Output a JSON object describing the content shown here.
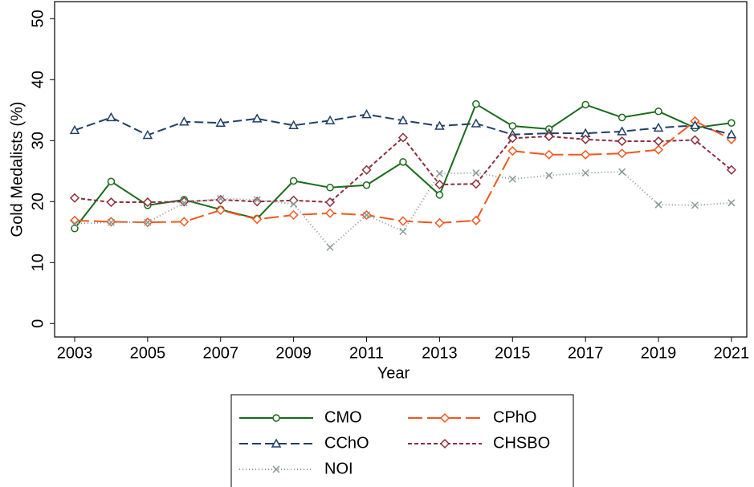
{
  "chart_data": {
    "type": "line",
    "x": [
      2003,
      2004,
      2005,
      2006,
      2007,
      2008,
      2009,
      2010,
      2011,
      2012,
      2013,
      2014,
      2015,
      2016,
      2017,
      2018,
      2019,
      2020,
      2021
    ],
    "xlabel": "Year",
    "ylabel": "Gold Medalists (%)",
    "xlim": [
      2002.45,
      2021.42
    ],
    "ylim": [
      -2.2,
      52.8
    ],
    "xticks": [
      2003,
      2005,
      2007,
      2009,
      2011,
      2013,
      2015,
      2017,
      2019,
      2021
    ],
    "yticks": [
      0,
      10,
      20,
      30,
      40,
      50
    ],
    "series": [
      {
        "name": "CMO",
        "color": "#1a6b1a",
        "marker": "circle",
        "dash": "none",
        "values": [
          15.6,
          23.3,
          19.4,
          20.3,
          18.7,
          17.2,
          23.4,
          22.3,
          22.7,
          26.5,
          21.1,
          36.0,
          32.4,
          31.9,
          35.9,
          33.8,
          34.8,
          32.1,
          32.9
        ]
      },
      {
        "name": "CPhO",
        "color": "#f0571f",
        "marker": "diamond",
        "dash": "18 6",
        "values": [
          16.9,
          16.7,
          16.6,
          16.7,
          18.6,
          17.1,
          17.8,
          18.1,
          17.8,
          16.8,
          16.5,
          16.9,
          28.3,
          27.7,
          27.7,
          27.9,
          28.5,
          33.2,
          30.2
        ]
      },
      {
        "name": "CChO",
        "color": "#1f3f66",
        "marker": "triangle",
        "dash": "11 5",
        "values": [
          31.7,
          33.8,
          30.9,
          33.1,
          32.9,
          33.6,
          32.5,
          33.3,
          34.3,
          33.3,
          32.4,
          32.8,
          31.0,
          31.2,
          31.2,
          31.5,
          32.1,
          32.5,
          31.0
        ]
      },
      {
        "name": "CHSBO",
        "color": "#8b2e3c",
        "marker": "diamond",
        "dash": "5 3",
        "values": [
          20.6,
          19.9,
          19.9,
          20.0,
          20.3,
          20.0,
          20.2,
          19.9,
          25.2,
          30.5,
          22.8,
          22.9,
          30.4,
          30.7,
          30.2,
          29.9,
          29.9,
          30.1,
          25.2
        ]
      },
      {
        "name": "NOI",
        "color": "#8a9a96",
        "marker": "x",
        "dash": "1 3",
        "values": [
          16.4,
          16.6,
          16.6,
          19.8,
          20.5,
          20.3,
          19.6,
          12.5,
          17.8,
          15.1,
          24.6,
          24.7,
          23.7,
          24.3,
          24.7,
          24.9,
          19.5,
          19.4,
          19.8
        ]
      }
    ]
  }
}
